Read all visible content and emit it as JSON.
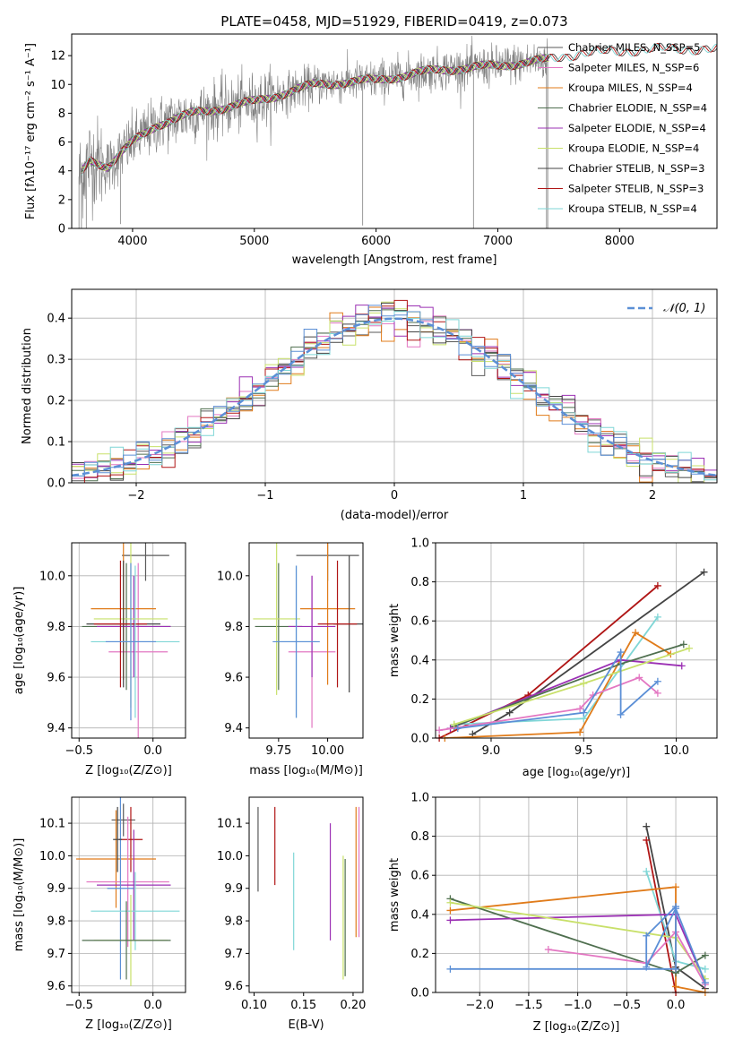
{
  "colors": {
    "chabrier_miles": "#5a5a5a",
    "salpeter_miles": "#e377c2",
    "kroupa_miles": "#e07b1a",
    "chabrier_elodie": "#4f6f4f",
    "salpeter_elodie": "#9b30b4",
    "kroupa_elodie": "#c8e06a",
    "chabrier_stelib": "#444444",
    "salpeter_stelib": "#b01515",
    "kroupa_stelib": "#7fd6d6",
    "data_spectrum": "#808080",
    "normal_curve": "#5b8fd6",
    "blue_series": "#5b8fd6"
  },
  "chart_data": [
    {
      "id": "spectrum",
      "type": "line",
      "title": "PLATE=0458, MJD=51929, FIBERID=0419, z=0.073",
      "xlabel": "wavelength [Angstrom, rest frame]",
      "ylabel": "Flux [fλ10⁻¹⁷ erg cm⁻² s⁻¹ A⁻¹]",
      "xlim": [
        3500,
        8800
      ],
      "ylim": [
        0,
        13.5
      ],
      "xticks": [
        "4000",
        "5000",
        "6000",
        "7000",
        "8000"
      ],
      "yticks": [
        "0",
        "2",
        "4",
        "6",
        "8",
        "10",
        "12"
      ],
      "legend_position": "right",
      "legend": [
        {
          "label": "Chabrier MILES, N_SSP=5",
          "color_key": "chabrier_miles"
        },
        {
          "label": "Salpeter MILES, N_SSP=6",
          "color_key": "salpeter_miles"
        },
        {
          "label": "Kroupa MILES, N_SSP=4",
          "color_key": "kroupa_miles"
        },
        {
          "label": "Chabrier ELODIE, N_SSP=4",
          "color_key": "chabrier_elodie"
        },
        {
          "label": "Salpeter ELODIE, N_SSP=4",
          "color_key": "salpeter_elodie"
        },
        {
          "label": "Kroupa ELODIE, N_SSP=4",
          "color_key": "kroupa_elodie"
        },
        {
          "label": "Chabrier STELIB, N_SSP=3",
          "color_key": "chabrier_stelib"
        },
        {
          "label": "Salpeter STELIB, N_SSP=3",
          "color_key": "salpeter_stelib"
        },
        {
          "label": "Kroupa STELIB, N_SSP=4",
          "color_key": "kroupa_stelib"
        }
      ],
      "continuum_nodes": [
        [
          3560,
          3.6
        ],
        [
          3650,
          4.8
        ],
        [
          3800,
          4.3
        ],
        [
          4000,
          6.0
        ],
        [
          4200,
          7.2
        ],
        [
          4500,
          8.0
        ],
        [
          5000,
          8.8
        ],
        [
          5500,
          10.0
        ],
        [
          6000,
          10.3
        ],
        [
          6500,
          11.0
        ],
        [
          7000,
          11.3
        ],
        [
          7400,
          11.7
        ],
        [
          7700,
          12.2
        ],
        [
          8000,
          12.3
        ],
        [
          8400,
          12.5
        ],
        [
          8800,
          12.4
        ]
      ],
      "data_end": 7420
    },
    {
      "id": "residuals",
      "type": "histogram",
      "xlabel": "(data-model)/error",
      "ylabel": "Normed distribution",
      "xlim": [
        -2.5,
        2.5
      ],
      "ylim": [
        0,
        0.47
      ],
      "xticks": [
        "−2",
        "−1",
        "0",
        "1",
        "2"
      ],
      "yticks": [
        "0.0",
        "0.1",
        "0.2",
        "0.3",
        "0.4"
      ],
      "legend_position": "top-right",
      "legend_label": "𝒩(0, 1)",
      "bin_width": 0.1
    },
    {
      "id": "age_vs_Z",
      "type": "errorbar",
      "xlabel": "Z [log₁₀(Z/Z⊙)]",
      "ylabel": "age  [log₁₀(age/yr)]",
      "xlim": [
        -0.55,
        0.22
      ],
      "ylim": [
        9.36,
        10.13
      ],
      "xticks": [
        "−0.5",
        "0.0"
      ],
      "yticks": [
        "9.4",
        "9.6",
        "9.8",
        "10.0"
      ],
      "points": [
        {
          "c": "chabrier_miles",
          "x": -0.05,
          "xerr": 0.16,
          "y": 10.08,
          "yerr": 0.1
        },
        {
          "c": "salpeter_miles",
          "x": -0.1,
          "xerr": 0.2,
          "y": 9.7,
          "yerr": 0.35
        },
        {
          "c": "kroupa_miles",
          "x": -0.2,
          "xerr": 0.22,
          "y": 9.87,
          "yerr": 0.28
        },
        {
          "c": "chabrier_elodie",
          "x": -0.18,
          "xerr": 0.3,
          "y": 9.8,
          "yerr": 0.25
        },
        {
          "c": "salpeter_elodie",
          "x": -0.13,
          "xerr": 0.25,
          "y": 9.8,
          "yerr": 0.2
        },
        {
          "c": "kroupa_elodie",
          "x": -0.15,
          "xerr": 0.25,
          "y": 9.83,
          "yerr": 0.35
        },
        {
          "c": "chabrier_stelib",
          "x": -0.2,
          "xerr": 0.25,
          "y": 9.81,
          "yerr": 0.25
        },
        {
          "c": "salpeter_stelib",
          "x": -0.22,
          "xerr": 0.18,
          "y": 9.81,
          "yerr": 0.25
        },
        {
          "c": "kroupa_stelib",
          "x": -0.12,
          "xerr": 0.3,
          "y": 9.74,
          "yerr": 0.3
        },
        {
          "c": "blue_series",
          "x": -0.15,
          "xerr": 0.17,
          "y": 9.74,
          "yerr": 0.31
        }
      ]
    },
    {
      "id": "age_vs_mass",
      "type": "errorbar",
      "xlabel": "mass [log₁₀(M/M⊙)]",
      "ylabel": "",
      "xlim": [
        9.6,
        10.18
      ],
      "ylim": [
        9.36,
        10.13
      ],
      "xticks": [
        "9.75",
        "10.00"
      ],
      "yticks": [
        "9.4",
        "9.6",
        "9.8",
        "10.0"
      ],
      "points": [
        {
          "c": "chabrier_miles",
          "x": 10.0,
          "xerr": 0.16,
          "y": 10.08,
          "yerr": 0.1
        },
        {
          "c": "salpeter_miles",
          "x": 9.92,
          "xerr": 0.12,
          "y": 9.7,
          "yerr": 0.3
        },
        {
          "c": "kroupa_miles",
          "x": 10.0,
          "xerr": 0.14,
          "y": 9.87,
          "yerr": 0.3
        },
        {
          "c": "chabrier_elodie",
          "x": 9.75,
          "xerr": 0.12,
          "y": 9.8,
          "yerr": 0.25
        },
        {
          "c": "salpeter_elodie",
          "x": 9.92,
          "xerr": 0.12,
          "y": 9.8,
          "yerr": 0.2
        },
        {
          "c": "kroupa_elodie",
          "x": 9.74,
          "xerr": 0.12,
          "y": 9.83,
          "yerr": 0.3
        },
        {
          "c": "chabrier_stelib",
          "x": 10.11,
          "xerr": 0.08,
          "y": 9.81,
          "yerr": 0.27
        },
        {
          "c": "salpeter_stelib",
          "x": 10.05,
          "xerr": 0.1,
          "y": 9.81,
          "yerr": 0.25
        },
        {
          "c": "kroupa_stelib",
          "x": 9.84,
          "xerr": 0.1,
          "y": 9.74,
          "yerr": 0.3
        },
        {
          "c": "blue_series",
          "x": 9.84,
          "xerr": 0.12,
          "y": 9.74,
          "yerr": 0.3
        }
      ]
    },
    {
      "id": "mass_weight_vs_age",
      "type": "line",
      "xlabel": "age  [log₁₀(age/yr)]",
      "ylabel": "mass weight",
      "xlim": [
        8.7,
        10.22
      ],
      "ylim": [
        0,
        1
      ],
      "xticks": [
        "9.0",
        "9.5",
        "10.0"
      ],
      "yticks": [
        "0.0",
        "0.2",
        "0.4",
        "0.6",
        "0.8",
        "1.0"
      ],
      "series": [
        {
          "c": "salpeter_stelib",
          "x": [
            8.72,
            9.2,
            9.9
          ],
          "y": [
            0.0,
            0.22,
            0.78
          ]
        },
        {
          "c": "chabrier_stelib",
          "x": [
            8.9,
            9.1,
            10.15
          ],
          "y": [
            0.02,
            0.13,
            0.85
          ]
        },
        {
          "c": "kroupa_stelib",
          "x": [
            8.8,
            9.5,
            9.9
          ],
          "y": [
            0.07,
            0.1,
            0.62
          ]
        },
        {
          "c": "kroupa_miles",
          "x": [
            8.75,
            9.48,
            9.78,
            9.97
          ],
          "y": [
            0.0,
            0.03,
            0.54,
            0.43
          ]
        },
        {
          "c": "salpeter_elodie",
          "x": [
            8.78,
            9.7,
            10.03
          ],
          "y": [
            0.05,
            0.4,
            0.37
          ]
        },
        {
          "c": "chabrier_elodie",
          "x": [
            8.8,
            9.7,
            10.04
          ],
          "y": [
            0.06,
            0.38,
            0.48
          ]
        },
        {
          "c": "kroupa_elodie",
          "x": [
            8.8,
            9.5,
            10.07
          ],
          "y": [
            0.07,
            0.28,
            0.46
          ]
        },
        {
          "c": "salpeter_miles",
          "x": [
            8.72,
            9.48,
            9.55,
            9.8,
            9.9
          ],
          "y": [
            0.04,
            0.15,
            0.22,
            0.31,
            0.23
          ]
        },
        {
          "c": "blue_series",
          "x": [
            8.82,
            9.5,
            9.7,
            9.7,
            9.9
          ],
          "y": [
            0.05,
            0.13,
            0.44,
            0.12,
            0.29
          ]
        }
      ]
    },
    {
      "id": "mass_vs_Z",
      "type": "errorbar",
      "xlabel": "Z [log₁₀(Z/Z⊙)]",
      "ylabel": "mass [log₁₀(M/M⊙)]",
      "xlim": [
        -0.55,
        0.22
      ],
      "ylim": [
        9.58,
        10.18
      ],
      "xticks": [
        "−0.5",
        "0.0"
      ],
      "yticks": [
        "9.6",
        "9.7",
        "9.8",
        "9.9",
        "10.0",
        "10.1"
      ],
      "points": [
        {
          "c": "chabrier_miles",
          "x": -0.2,
          "xerr": 0.08,
          "y": 10.11,
          "yerr": 0.05
        },
        {
          "c": "salpeter_stelib",
          "x": -0.15,
          "xerr": 0.08,
          "y": 10.05,
          "yerr": 0.1
        },
        {
          "c": "kroupa_miles",
          "x": -0.25,
          "xerr": 0.27,
          "y": 9.99,
          "yerr": 0.15
        },
        {
          "c": "salpeter_miles",
          "x": -0.17,
          "xerr": 0.28,
          "y": 9.92,
          "yerr": 0.2
        },
        {
          "c": "salpeter_elodie",
          "x": -0.13,
          "xerr": 0.25,
          "y": 9.91,
          "yerr": 0.17
        },
        {
          "c": "blue_series",
          "x": -0.22,
          "xerr": 0.09,
          "y": 9.9,
          "yerr": 0.28
        },
        {
          "c": "kroupa_stelib",
          "x": -0.12,
          "xerr": 0.3,
          "y": 9.83,
          "yerr": 0.12
        },
        {
          "c": "kroupa_elodie",
          "x": -0.15,
          "xerr": 0.25,
          "y": 9.74,
          "yerr": 0.14
        },
        {
          "c": "chabrier_elodie",
          "x": -0.18,
          "xerr": 0.3,
          "y": 9.74,
          "yerr": 0.12
        },
        {
          "c": "chabrier_stelib",
          "x": -0.24,
          "xerr": 0.03,
          "y": 10.05,
          "yerr": 0.1
        }
      ]
    },
    {
      "id": "mass_vs_EBV",
      "type": "errorbar",
      "xlabel": "E(B-V)",
      "ylabel": "",
      "xlim": [
        0.095,
        0.21
      ],
      "ylim": [
        9.58,
        10.18
      ],
      "xticks": [
        "0.10",
        "0.15",
        "0.20"
      ],
      "yticks": [
        "9.6",
        "9.7",
        "9.8",
        "9.9",
        "10.0",
        "10.1"
      ],
      "points": [
        {
          "c": "chabrier_miles",
          "x": 0.104,
          "y": 10.02,
          "yerr": 0.13
        },
        {
          "c": "salpeter_stelib",
          "x": 0.121,
          "y": 10.03,
          "yerr": 0.12
        },
        {
          "c": "kroupa_stelib",
          "x": 0.14,
          "y": 9.86,
          "yerr": 0.15
        },
        {
          "c": "salpeter_elodie",
          "x": 0.177,
          "y": 9.92,
          "yerr": 0.18
        },
        {
          "c": "kroupa_elodie",
          "x": 0.19,
          "y": 9.81,
          "yerr": 0.19
        },
        {
          "c": "chabrier_elodie",
          "x": 0.192,
          "y": 9.81,
          "yerr": 0.18
        },
        {
          "c": "kroupa_miles",
          "x": 0.203,
          "y": 9.95,
          "yerr": 0.2
        },
        {
          "c": "salpeter_miles",
          "x": 0.206,
          "y": 9.95,
          "yerr": 0.2
        }
      ]
    },
    {
      "id": "mass_weight_vs_Z",
      "type": "line",
      "xlabel": "Z [log₁₀(Z/Z⊙)]",
      "ylabel": "mass weight",
      "xlim": [
        -2.45,
        0.42
      ],
      "ylim": [
        0,
        1
      ],
      "xticks": [
        "−2.0",
        "−1.5",
        "−1.0",
        "−0.5",
        "0.0"
      ],
      "yticks": [
        "0.0",
        "0.2",
        "0.4",
        "0.6",
        "0.8",
        "1.0"
      ],
      "series": [
        {
          "c": "chabrier_stelib",
          "x": [
            -0.3,
            0.0,
            0.3
          ],
          "y": [
            0.85,
            0.13,
            0.02
          ]
        },
        {
          "c": "salpeter_stelib",
          "x": [
            -0.3,
            0.0
          ],
          "y": [
            0.78,
            0.0
          ]
        },
        {
          "c": "kroupa_stelib",
          "x": [
            -0.3,
            0.0,
            0.3
          ],
          "y": [
            0.62,
            0.16,
            0.12
          ]
        },
        {
          "c": "kroupa_miles",
          "x": [
            -2.3,
            0.0,
            0.0,
            0.3
          ],
          "y": [
            0.42,
            0.54,
            0.03,
            0.0
          ]
        },
        {
          "c": "chabrier_elodie",
          "x": [
            -2.3,
            0.0,
            0.3
          ],
          "y": [
            0.48,
            0.1,
            0.19
          ]
        },
        {
          "c": "salpeter_elodie",
          "x": [
            -2.3,
            0.0,
            0.3
          ],
          "y": [
            0.37,
            0.4,
            0.05
          ]
        },
        {
          "c": "kroupa_elodie",
          "x": [
            -2.3,
            0.0,
            0.3
          ],
          "y": [
            0.46,
            0.28,
            0.07
          ]
        },
        {
          "c": "salpeter_miles",
          "x": [
            -1.3,
            -0.3,
            0.0,
            0.3
          ],
          "y": [
            0.22,
            0.15,
            0.31,
            0.04
          ]
        },
        {
          "c": "blue_series",
          "x": [
            -2.3,
            0.0,
            0.0,
            -0.3,
            -0.3,
            0.0,
            0.3
          ],
          "y": [
            0.12,
            0.12,
            0.44,
            0.29,
            0.13,
            0.43,
            0.05
          ]
        }
      ]
    }
  ]
}
